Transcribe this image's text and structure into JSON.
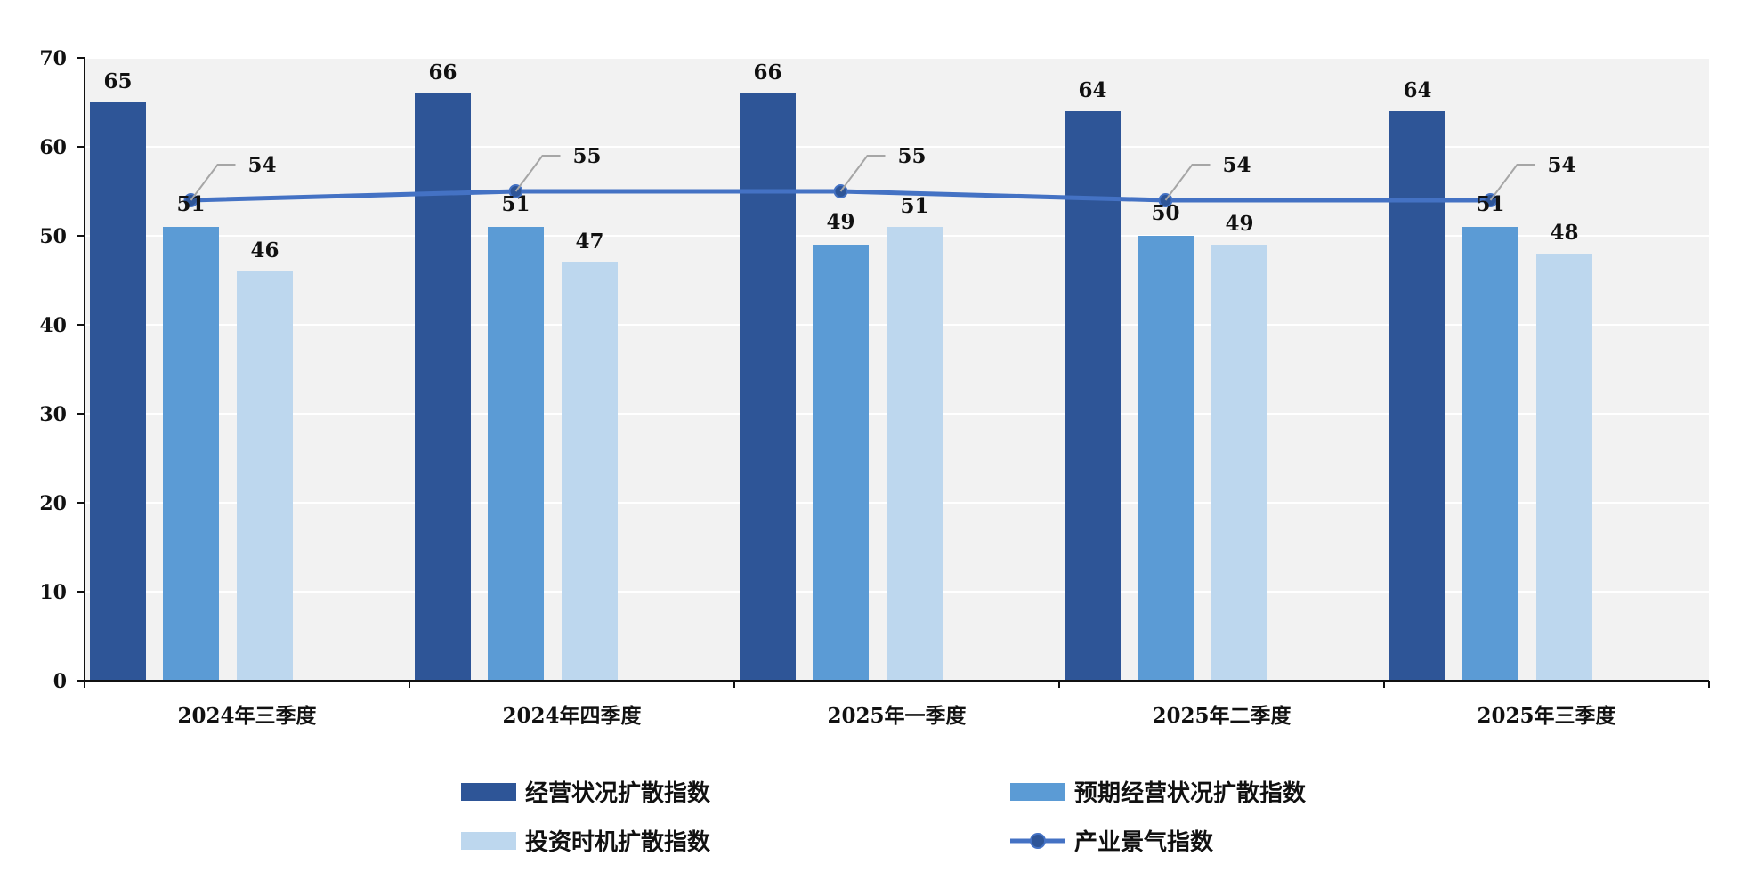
{
  "chart_data": {
    "type": "bar",
    "categories": [
      "2024年三季度",
      "2024年四季度",
      "2025年一季度",
      "2025年二季度",
      "2025年三季度"
    ],
    "series": [
      {
        "name": "经营状况扩散指数",
        "kind": "bar",
        "color": "#2E5597",
        "values": [
          65,
          66,
          66,
          64,
          64
        ]
      },
      {
        "name": "预期经营状况扩散指数",
        "kind": "bar",
        "color": "#5B9BD5",
        "values": [
          51,
          51,
          49,
          50,
          51
        ]
      },
      {
        "name": "投资时机扩散指数",
        "kind": "bar",
        "color": "#BDD7EE",
        "values": [
          46,
          47,
          51,
          49,
          48
        ]
      },
      {
        "name": "产业景气指数",
        "kind": "line",
        "color": "#4472C4",
        "values": [
          54,
          55,
          55,
          54,
          54
        ]
      }
    ],
    "yticks": [
      "0",
      "10",
      "20",
      "30",
      "40",
      "50",
      "60",
      "70"
    ],
    "ylim": [
      0,
      70
    ],
    "grid": true,
    "plot_background": "#F2F2F2",
    "legend_position": "bottom"
  }
}
